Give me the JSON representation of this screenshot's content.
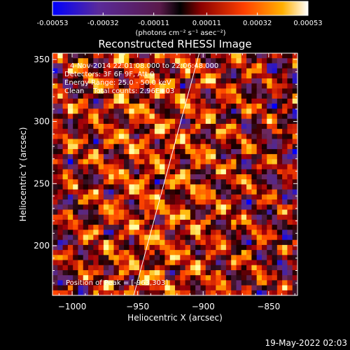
{
  "colorbar": {
    "ticks": [
      "-0.00053",
      "-0.00032",
      "-0.00011",
      "0.00011",
      "0.00032",
      "0.00053"
    ],
    "tick_values": [
      -0.00053,
      -0.00032,
      -0.00011,
      0.00011,
      0.00032,
      0.00053
    ],
    "units": "(photons cm⁻² s⁻¹ asec⁻²)"
  },
  "chart_data": {
    "type": "heatmap",
    "title": "Reconstructed RHESSI Image",
    "xlabel": "Heliocentric X (arcsec)",
    "ylabel": "Heliocentric Y (arcsec)",
    "xlim": [
      -1015,
      -828
    ],
    "ylim": [
      160,
      355
    ],
    "xticks": [
      -1000,
      -950,
      -900,
      -850
    ],
    "yticks": [
      200,
      250,
      300,
      350
    ],
    "xtick_labels": [
      "−1000",
      "−950",
      "−900",
      "−850"
    ],
    "ytick_labels": [
      "200",
      "250",
      "300",
      "350"
    ],
    "limb_line": [
      [
        -953,
        160
      ],
      [
        -903,
        355
      ]
    ],
    "peak": [
      -963,
      303
    ]
  },
  "annotations": [
    "4-Nov-2014 22:01:08.000 to 22:06:48.000",
    "Detectors: 3F 6F 9F, Att 0",
    "Energy Range: 25.0 - 50.0 keV",
    "Clean    Total counts: 2.96E+03"
  ],
  "peak_label": "Position of Peak = [-963,303]",
  "timestamp": "19-May-2022 02:03",
  "palette": {
    "background": "#000000",
    "text": "#ffffff",
    "scale": [
      "#0000ff",
      "#5a2a9a",
      "#7a2a5a",
      "#b00010",
      "#ff5000",
      "#ffb000",
      "#ffff90"
    ]
  }
}
